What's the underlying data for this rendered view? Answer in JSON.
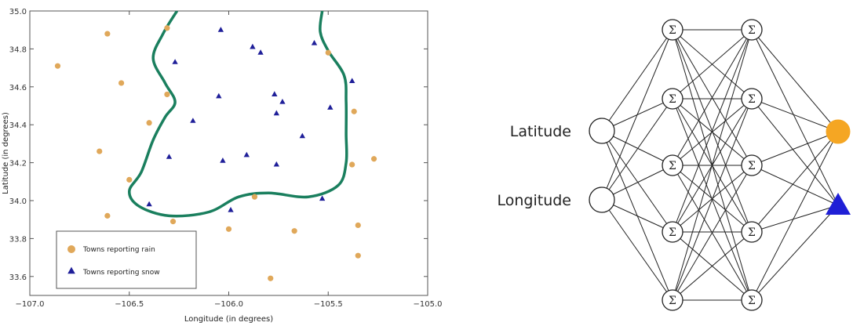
{
  "chart_data": [
    {
      "type": "scatter",
      "title": "",
      "xlabel": "Longitude (in degrees)",
      "ylabel": "Latitude (in degrees)",
      "xlim": [
        -107.0,
        -105.0
      ],
      "ylim": [
        33.5,
        35.0
      ],
      "xticks": [
        -107.0,
        -106.5,
        -106.0,
        -105.5,
        -105.0
      ],
      "xtick_labels": [
        "−107.0",
        "−106.5",
        "−106.0",
        "−105.5",
        "−105.0"
      ],
      "yticks": [
        33.6,
        33.8,
        34.0,
        34.2,
        34.4,
        34.6,
        34.8,
        35.0
      ],
      "ytick_labels": [
        "33.6",
        "33.8",
        "34.0",
        "34.2",
        "34.4",
        "34.6",
        "34.8",
        "35.0"
      ],
      "grid": false,
      "legend_position": "bottom-left",
      "series": [
        {
          "name": "Towns reporting rain",
          "marker": "circle",
          "color": "#E0A85A",
          "points": [
            [
              -106.86,
              34.71
            ],
            [
              -106.61,
              34.88
            ],
            [
              -106.31,
              34.91
            ],
            [
              -106.54,
              34.62
            ],
            [
              -106.31,
              34.56
            ],
            [
              -106.4,
              34.41
            ],
            [
              -106.65,
              34.26
            ],
            [
              -106.5,
              34.11
            ],
            [
              -106.61,
              33.92
            ],
            [
              -106.28,
              33.89
            ],
            [
              -106.0,
              33.85
            ],
            [
              -105.87,
              34.02
            ],
            [
              -105.5,
              34.78
            ],
            [
              -105.37,
              34.47
            ],
            [
              -105.38,
              34.19
            ],
            [
              -105.27,
              34.22
            ],
            [
              -105.67,
              33.84
            ],
            [
              -105.35,
              33.87
            ],
            [
              -105.35,
              33.71
            ],
            [
              -105.79,
              33.59
            ]
          ]
        },
        {
          "name": "Towns reporting snow",
          "marker": "triangle",
          "color": "#1F1F99",
          "points": [
            [
              -106.04,
              34.9
            ],
            [
              -105.88,
              34.81
            ],
            [
              -105.84,
              34.78
            ],
            [
              -105.57,
              34.83
            ],
            [
              -106.27,
              34.73
            ],
            [
              -106.05,
              34.55
            ],
            [
              -105.77,
              34.56
            ],
            [
              -105.73,
              34.52
            ],
            [
              -105.76,
              34.46
            ],
            [
              -106.18,
              34.42
            ],
            [
              -105.38,
              34.63
            ],
            [
              -105.49,
              34.49
            ],
            [
              -105.63,
              34.34
            ],
            [
              -106.3,
              34.23
            ],
            [
              -106.03,
              34.21
            ],
            [
              -105.91,
              34.24
            ],
            [
              -105.76,
              34.19
            ],
            [
              -106.4,
              33.98
            ],
            [
              -105.99,
              33.95
            ],
            [
              -105.53,
              34.01
            ]
          ]
        }
      ],
      "boundary": {
        "color": "#1A7F5E",
        "points": [
          [
            -106.26,
            35.0
          ],
          [
            -106.33,
            34.88
          ],
          [
            -106.38,
            34.75
          ],
          [
            -106.32,
            34.62
          ],
          [
            -106.27,
            34.52
          ],
          [
            -106.32,
            34.44
          ],
          [
            -106.38,
            34.32
          ],
          [
            -106.44,
            34.15
          ],
          [
            -106.5,
            34.05
          ],
          [
            -106.45,
            33.97
          ],
          [
            -106.3,
            33.92
          ],
          [
            -106.1,
            33.94
          ],
          [
            -105.95,
            34.02
          ],
          [
            -105.8,
            34.04
          ],
          [
            -105.6,
            34.02
          ],
          [
            -105.45,
            34.08
          ],
          [
            -105.41,
            34.2
          ],
          [
            -105.41,
            34.35
          ],
          [
            -105.41,
            34.52
          ],
          [
            -105.42,
            34.66
          ],
          [
            -105.5,
            34.79
          ],
          [
            -105.54,
            34.89
          ],
          [
            -105.53,
            35.0
          ]
        ]
      }
    },
    {
      "type": "diagram",
      "input_labels": [
        "Latitude",
        "Longitude"
      ],
      "hidden_layers": 2,
      "hidden_nodes_per_layer": 5,
      "hidden_symbol": "Σ",
      "outputs": [
        {
          "shape": "circle",
          "color": "#F5A623"
        },
        {
          "shape": "triangle",
          "color": "#1F1FD6"
        }
      ],
      "line_color": "#222222"
    }
  ]
}
